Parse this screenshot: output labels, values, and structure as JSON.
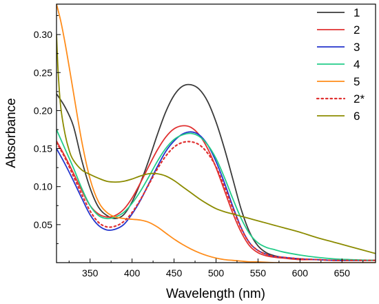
{
  "chart_data": {
    "type": "line",
    "xlabel": "Wavelength (nm)",
    "ylabel": "Absorbance",
    "xlim": [
      310,
      690
    ],
    "ylim": [
      0,
      0.34
    ],
    "x_ticks": [
      350,
      400,
      450,
      500,
      550,
      600,
      650
    ],
    "y_ticks": [
      0.05,
      0.1,
      0.15,
      0.2,
      0.25,
      0.3
    ],
    "x_tick_labels": [
      "350",
      "400",
      "450",
      "500",
      "550",
      "600",
      "650"
    ],
    "y_tick_labels": [
      "0.05",
      "0.10",
      "0.15",
      "0.20",
      "0.25",
      "0.30"
    ],
    "grid": false,
    "legend_position": "top-right",
    "series": [
      {
        "name": "1",
        "color": "#3a3a3a",
        "dash": "solid",
        "x": [
          310,
          320,
          330,
          340,
          350,
          360,
          370,
          380,
          390,
          400,
          410,
          420,
          430,
          440,
          450,
          460,
          470,
          480,
          490,
          500,
          510,
          520,
          530,
          540,
          550,
          560,
          570,
          580,
          600,
          620,
          640,
          660,
          690
        ],
        "y": [
          0.222,
          0.205,
          0.18,
          0.135,
          0.098,
          0.073,
          0.062,
          0.058,
          0.063,
          0.08,
          0.105,
          0.135,
          0.168,
          0.198,
          0.22,
          0.232,
          0.234,
          0.228,
          0.212,
          0.185,
          0.15,
          0.11,
          0.07,
          0.04,
          0.022,
          0.013,
          0.009,
          0.007,
          0.005,
          0.004,
          0.003,
          0.003,
          0.003
        ]
      },
      {
        "name": "2",
        "color": "#e03030",
        "dash": "solid",
        "x": [
          310,
          320,
          330,
          340,
          350,
          360,
          370,
          380,
          390,
          400,
          410,
          420,
          430,
          440,
          450,
          460,
          470,
          480,
          490,
          500,
          510,
          520,
          530,
          540,
          550,
          560,
          570,
          580,
          600,
          620,
          640,
          660,
          690
        ],
        "y": [
          0.16,
          0.14,
          0.118,
          0.095,
          0.075,
          0.064,
          0.06,
          0.062,
          0.07,
          0.085,
          0.105,
          0.127,
          0.148,
          0.165,
          0.176,
          0.18,
          0.178,
          0.168,
          0.15,
          0.125,
          0.095,
          0.065,
          0.04,
          0.022,
          0.013,
          0.009,
          0.007,
          0.006,
          0.004,
          0.004,
          0.003,
          0.003,
          0.003
        ]
      },
      {
        "name": "3",
        "color": "#2233cc",
        "dash": "solid",
        "x": [
          310,
          320,
          330,
          340,
          350,
          360,
          370,
          380,
          390,
          400,
          410,
          420,
          430,
          440,
          450,
          460,
          470,
          480,
          490,
          500,
          510,
          520,
          530,
          540,
          550,
          560,
          570,
          580,
          600,
          620,
          640,
          660,
          690
        ],
        "y": [
          0.15,
          0.13,
          0.108,
          0.085,
          0.063,
          0.049,
          0.043,
          0.044,
          0.05,
          0.064,
          0.082,
          0.104,
          0.126,
          0.146,
          0.16,
          0.169,
          0.172,
          0.168,
          0.155,
          0.133,
          0.105,
          0.074,
          0.046,
          0.026,
          0.016,
          0.011,
          0.008,
          0.007,
          0.005,
          0.004,
          0.003,
          0.003,
          0.003
        ]
      },
      {
        "name": "4",
        "color": "#22cc88",
        "dash": "solid",
        "x": [
          310,
          320,
          330,
          340,
          350,
          360,
          370,
          380,
          390,
          400,
          410,
          420,
          430,
          440,
          450,
          460,
          470,
          480,
          490,
          500,
          510,
          520,
          530,
          540,
          550,
          560,
          570,
          580,
          600,
          620,
          640,
          660,
          690
        ],
        "y": [
          0.175,
          0.15,
          0.125,
          0.098,
          0.075,
          0.062,
          0.058,
          0.06,
          0.066,
          0.078,
          0.094,
          0.113,
          0.133,
          0.15,
          0.162,
          0.168,
          0.17,
          0.166,
          0.155,
          0.137,
          0.112,
          0.084,
          0.058,
          0.038,
          0.026,
          0.02,
          0.017,
          0.014,
          0.01,
          0.007,
          0.005,
          0.004,
          0.003
        ]
      },
      {
        "name": "5",
        "color": "#ff8c1a",
        "dash": "solid",
        "x": [
          310,
          315,
          320,
          325,
          330,
          340,
          350,
          360,
          370,
          380,
          390,
          400,
          410,
          420,
          430,
          440,
          450,
          460,
          470,
          480,
          490,
          500,
          510,
          520,
          530,
          540,
          550,
          570,
          600,
          650,
          690
        ],
        "y": [
          0.34,
          0.318,
          0.29,
          0.258,
          0.225,
          0.16,
          0.11,
          0.08,
          0.066,
          0.06,
          0.058,
          0.057,
          0.056,
          0.053,
          0.047,
          0.039,
          0.031,
          0.024,
          0.018,
          0.013,
          0.009,
          0.006,
          0.004,
          0.003,
          0.002,
          0.001,
          0.001,
          0.0,
          0.0,
          0.0,
          0.0
        ]
      },
      {
        "name": "2*",
        "color": "#e03030",
        "dash": "dotted",
        "x": [
          310,
          320,
          330,
          340,
          350,
          360,
          370,
          380,
          390,
          400,
          410,
          420,
          430,
          440,
          450,
          460,
          470,
          480,
          490,
          500,
          510,
          520,
          530,
          540,
          550,
          560,
          570,
          580,
          600,
          620,
          640,
          660,
          690
        ],
        "y": [
          0.158,
          0.138,
          0.114,
          0.09,
          0.068,
          0.053,
          0.047,
          0.048,
          0.054,
          0.066,
          0.083,
          0.103,
          0.123,
          0.14,
          0.152,
          0.158,
          0.159,
          0.155,
          0.144,
          0.126,
          0.1,
          0.071,
          0.045,
          0.026,
          0.016,
          0.011,
          0.008,
          0.007,
          0.005,
          0.004,
          0.003,
          0.003,
          0.003
        ]
      },
      {
        "name": "6",
        "color": "#8b8b00",
        "dash": "solid",
        "x": [
          310,
          312,
          315,
          320,
          325,
          330,
          340,
          350,
          360,
          370,
          380,
          390,
          400,
          410,
          420,
          430,
          440,
          450,
          460,
          470,
          480,
          490,
          500,
          510,
          520,
          530,
          540,
          550,
          560,
          570,
          580,
          600,
          620,
          640,
          660,
          690
        ],
        "y": [
          0.3,
          0.25,
          0.205,
          0.17,
          0.148,
          0.135,
          0.122,
          0.116,
          0.111,
          0.107,
          0.106,
          0.107,
          0.11,
          0.114,
          0.117,
          0.117,
          0.114,
          0.108,
          0.1,
          0.092,
          0.084,
          0.077,
          0.071,
          0.067,
          0.064,
          0.061,
          0.058,
          0.055,
          0.052,
          0.049,
          0.046,
          0.04,
          0.033,
          0.027,
          0.021,
          0.012
        ]
      }
    ]
  }
}
